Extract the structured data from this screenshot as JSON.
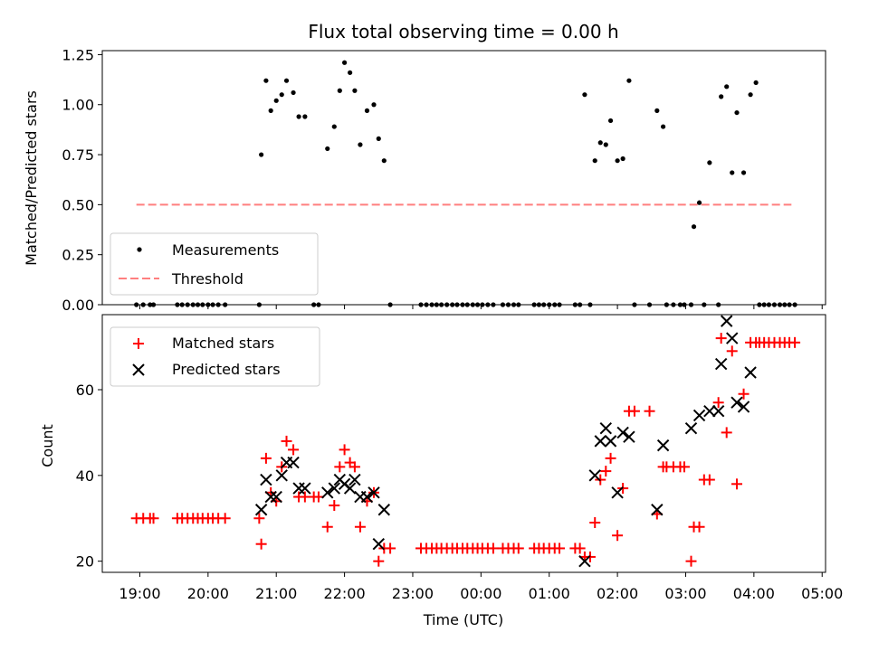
{
  "chart_data": [
    {
      "type": "scatter",
      "title": "Flux total observing time = 0.00 h",
      "xlabel": "",
      "ylabel": "Matched/Predicted stars",
      "x_unit": "hours since 19:00 UTC",
      "xlim": [
        -0.55,
        10.05
      ],
      "ylim": [
        0,
        1.27
      ],
      "yticks": [
        0.0,
        0.25,
        0.5,
        0.75,
        1.0,
        1.25
      ],
      "ytick_labels": [
        "0.00",
        "0.25",
        "0.50",
        "0.75",
        "1.00",
        "1.25"
      ],
      "legend_position": "lower-left",
      "series": [
        {
          "name": "Measurements",
          "marker": "dot",
          "color": "#000000",
          "points": [
            [
              -0.05,
              0
            ],
            [
              0.05,
              0
            ],
            [
              0.15,
              0
            ],
            [
              0.2,
              0
            ],
            [
              0.55,
              0
            ],
            [
              0.62,
              0
            ],
            [
              0.7,
              0
            ],
            [
              0.78,
              0
            ],
            [
              0.85,
              0
            ],
            [
              0.92,
              0
            ],
            [
              1.0,
              0
            ],
            [
              1.07,
              0
            ],
            [
              1.15,
              0
            ],
            [
              1.25,
              0
            ],
            [
              1.75,
              0
            ],
            [
              1.78,
              0.75
            ],
            [
              1.85,
              1.12
            ],
            [
              1.92,
              0.97
            ],
            [
              2.0,
              1.02
            ],
            [
              2.08,
              1.05
            ],
            [
              2.15,
              1.12
            ],
            [
              2.25,
              1.06
            ],
            [
              2.33,
              0.94
            ],
            [
              2.42,
              0.94
            ],
            [
              2.55,
              0
            ],
            [
              2.62,
              0
            ],
            [
              2.75,
              0.78
            ],
            [
              2.85,
              0.89
            ],
            [
              2.93,
              1.07
            ],
            [
              3.0,
              1.21
            ],
            [
              3.08,
              1.16
            ],
            [
              3.15,
              1.07
            ],
            [
              3.23,
              0.8
            ],
            [
              3.33,
              0.97
            ],
            [
              3.43,
              1.0
            ],
            [
              3.5,
              0.83
            ],
            [
              3.58,
              0.72
            ],
            [
              3.67,
              0
            ],
            [
              4.12,
              0
            ],
            [
              4.2,
              0
            ],
            [
              4.28,
              0
            ],
            [
              4.35,
              0
            ],
            [
              4.42,
              0
            ],
            [
              4.5,
              0
            ],
            [
              4.58,
              0
            ],
            [
              4.65,
              0
            ],
            [
              4.73,
              0
            ],
            [
              4.8,
              0
            ],
            [
              4.88,
              0
            ],
            [
              4.95,
              0
            ],
            [
              5.02,
              0
            ],
            [
              5.1,
              0
            ],
            [
              5.18,
              0
            ],
            [
              5.32,
              0
            ],
            [
              5.4,
              0
            ],
            [
              5.48,
              0
            ],
            [
              5.55,
              0
            ],
            [
              5.78,
              0
            ],
            [
              5.85,
              0
            ],
            [
              5.92,
              0
            ],
            [
              6.0,
              0
            ],
            [
              6.08,
              0
            ],
            [
              6.15,
              0
            ],
            [
              6.38,
              0
            ],
            [
              6.45,
              0
            ],
            [
              6.52,
              1.05
            ],
            [
              6.6,
              0
            ],
            [
              6.67,
              0.72
            ],
            [
              6.75,
              0.81
            ],
            [
              6.83,
              0.8
            ],
            [
              6.9,
              0.92
            ],
            [
              7.0,
              0.72
            ],
            [
              7.08,
              0.73
            ],
            [
              7.17,
              1.12
            ],
            [
              7.25,
              0
            ],
            [
              7.47,
              0
            ],
            [
              7.58,
              0.97
            ],
            [
              7.67,
              0.89
            ],
            [
              7.72,
              0
            ],
            [
              7.82,
              0
            ],
            [
              7.92,
              0
            ],
            [
              7.98,
              0
            ],
            [
              8.08,
              0
            ],
            [
              8.12,
              0.39
            ],
            [
              8.2,
              0.51
            ],
            [
              8.27,
              0
            ],
            [
              8.35,
              0.71
            ],
            [
              8.48,
              0
            ],
            [
              8.52,
              1.04
            ],
            [
              8.6,
              1.09
            ],
            [
              8.68,
              0.66
            ],
            [
              8.75,
              0.96
            ],
            [
              8.85,
              0.66
            ],
            [
              8.95,
              1.05
            ],
            [
              9.03,
              1.11
            ],
            [
              9.08,
              0
            ],
            [
              9.15,
              0
            ],
            [
              9.22,
              0
            ],
            [
              9.3,
              0
            ],
            [
              9.38,
              0
            ],
            [
              9.45,
              0
            ],
            [
              9.52,
              0
            ],
            [
              9.6,
              0
            ]
          ]
        },
        {
          "name": "Threshold",
          "marker": "dashed-line",
          "color": "#ff7f7f",
          "x": [
            -0.05,
            9.55
          ],
          "values": [
            0.5,
            0.5
          ]
        }
      ]
    },
    {
      "type": "scatter",
      "title": "",
      "xlabel": "Time (UTC)",
      "ylabel": "Count",
      "x_unit": "hours since 19:00 UTC",
      "xlim": [
        -0.55,
        10.05
      ],
      "ylim": [
        17.4,
        77.5
      ],
      "yticks": [
        20,
        40,
        60
      ],
      "ytick_labels": [
        "20",
        "40",
        "60"
      ],
      "xticks": [
        0,
        1,
        2,
        3,
        4,
        5,
        6,
        7,
        8,
        9,
        10
      ],
      "xtick_labels": [
        "19:00",
        "20:00",
        "21:00",
        "22:00",
        "23:00",
        "00:00",
        "01:00",
        "02:00",
        "03:00",
        "04:00",
        "05:00"
      ],
      "legend_position": "top-left",
      "series": [
        {
          "name": "Matched stars",
          "marker": "plus",
          "color": "#ff0000",
          "points": [
            [
              -0.05,
              30
            ],
            [
              0.05,
              30
            ],
            [
              0.15,
              30
            ],
            [
              0.2,
              30
            ],
            [
              0.55,
              30
            ],
            [
              0.62,
              30
            ],
            [
              0.7,
              30
            ],
            [
              0.78,
              30
            ],
            [
              0.85,
              30
            ],
            [
              0.92,
              30
            ],
            [
              1.0,
              30
            ],
            [
              1.07,
              30
            ],
            [
              1.15,
              30
            ],
            [
              1.25,
              30
            ],
            [
              1.75,
              30
            ],
            [
              1.78,
              24
            ],
            [
              1.85,
              44
            ],
            [
              1.92,
              36
            ],
            [
              2.0,
              34
            ],
            [
              2.08,
              42
            ],
            [
              2.15,
              48
            ],
            [
              2.25,
              46
            ],
            [
              2.33,
              35
            ],
            [
              2.42,
              35
            ],
            [
              2.55,
              35
            ],
            [
              2.62,
              35
            ],
            [
              2.75,
              28
            ],
            [
              2.85,
              33
            ],
            [
              2.93,
              42
            ],
            [
              3.0,
              46
            ],
            [
              3.08,
              43
            ],
            [
              3.15,
              42
            ],
            [
              3.23,
              28
            ],
            [
              3.33,
              34
            ],
            [
              3.43,
              36
            ],
            [
              3.5,
              20
            ],
            [
              3.58,
              23
            ],
            [
              3.67,
              23
            ],
            [
              4.12,
              23
            ],
            [
              4.2,
              23
            ],
            [
              4.28,
              23
            ],
            [
              4.35,
              23
            ],
            [
              4.42,
              23
            ],
            [
              4.5,
              23
            ],
            [
              4.58,
              23
            ],
            [
              4.65,
              23
            ],
            [
              4.73,
              23
            ],
            [
              4.8,
              23
            ],
            [
              4.88,
              23
            ],
            [
              4.95,
              23
            ],
            [
              5.02,
              23
            ],
            [
              5.1,
              23
            ],
            [
              5.18,
              23
            ],
            [
              5.32,
              23
            ],
            [
              5.4,
              23
            ],
            [
              5.48,
              23
            ],
            [
              5.55,
              23
            ],
            [
              5.78,
              23
            ],
            [
              5.85,
              23
            ],
            [
              5.92,
              23
            ],
            [
              6.0,
              23
            ],
            [
              6.08,
              23
            ],
            [
              6.15,
              23
            ],
            [
              6.38,
              23
            ],
            [
              6.45,
              23
            ],
            [
              6.52,
              21
            ],
            [
              6.6,
              21
            ],
            [
              6.67,
              29
            ],
            [
              6.75,
              39
            ],
            [
              6.83,
              41
            ],
            [
              6.9,
              44
            ],
            [
              7.0,
              26
            ],
            [
              7.08,
              37
            ],
            [
              7.17,
              55
            ],
            [
              7.25,
              55
            ],
            [
              7.47,
              55
            ],
            [
              7.58,
              31
            ],
            [
              7.67,
              42
            ],
            [
              7.72,
              42
            ],
            [
              7.82,
              42
            ],
            [
              7.92,
              42
            ],
            [
              7.98,
              42
            ],
            [
              8.08,
              20
            ],
            [
              8.12,
              28
            ],
            [
              8.2,
              28
            ],
            [
              8.27,
              39
            ],
            [
              8.35,
              39
            ],
            [
              8.48,
              57
            ],
            [
              8.52,
              72
            ],
            [
              8.6,
              50
            ],
            [
              8.68,
              69
            ],
            [
              8.75,
              38
            ],
            [
              8.85,
              59
            ],
            [
              8.95,
              71
            ],
            [
              9.03,
              71
            ],
            [
              9.08,
              71
            ],
            [
              9.15,
              71
            ],
            [
              9.22,
              71
            ],
            [
              9.3,
              71
            ],
            [
              9.38,
              71
            ],
            [
              9.45,
              71
            ],
            [
              9.52,
              71
            ],
            [
              9.6,
              71
            ]
          ]
        },
        {
          "name": "Predicted stars",
          "marker": "x",
          "color": "#000000",
          "points": [
            [
              1.78,
              32
            ],
            [
              1.85,
              39
            ],
            [
              1.92,
              35
            ],
            [
              2.0,
              35
            ],
            [
              2.08,
              40
            ],
            [
              2.15,
              43
            ],
            [
              2.25,
              43
            ],
            [
              2.33,
              37
            ],
            [
              2.42,
              37
            ],
            [
              2.75,
              36
            ],
            [
              2.85,
              37
            ],
            [
              2.93,
              39
            ],
            [
              3.0,
              38
            ],
            [
              3.08,
              37
            ],
            [
              3.15,
              39
            ],
            [
              3.23,
              35
            ],
            [
              3.33,
              35
            ],
            [
              3.43,
              36
            ],
            [
              3.5,
              24
            ],
            [
              3.58,
              32
            ],
            [
              6.52,
              20
            ],
            [
              6.67,
              40
            ],
            [
              6.75,
              48
            ],
            [
              6.83,
              51
            ],
            [
              6.9,
              48
            ],
            [
              7.0,
              36
            ],
            [
              7.08,
              50
            ],
            [
              7.17,
              49
            ],
            [
              7.58,
              32
            ],
            [
              7.67,
              47
            ],
            [
              8.08,
              51
            ],
            [
              8.2,
              54
            ],
            [
              8.35,
              55
            ],
            [
              8.48,
              55
            ],
            [
              8.52,
              66
            ],
            [
              8.6,
              76
            ],
            [
              8.68,
              72
            ],
            [
              8.75,
              57
            ],
            [
              8.85,
              56
            ],
            [
              8.95,
              64
            ]
          ]
        }
      ]
    }
  ]
}
